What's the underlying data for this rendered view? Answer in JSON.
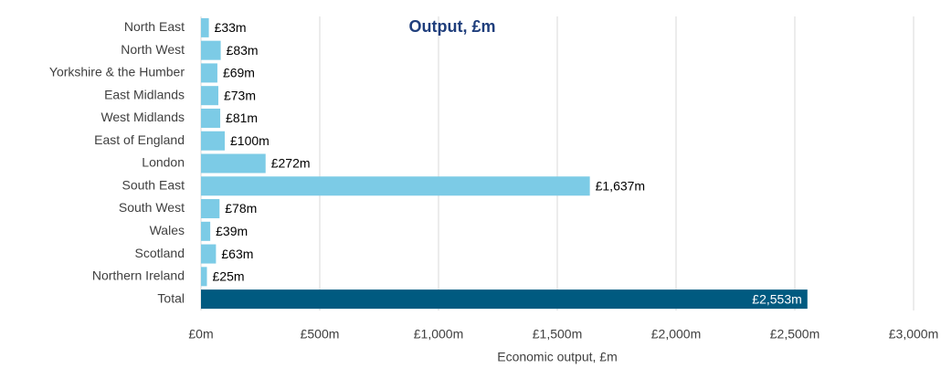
{
  "chart_data": {
    "type": "barh",
    "title": "Output, £m",
    "xlabel": "Economic output, £m",
    "categories": [
      "North East",
      "North West",
      "Yorkshire & the Humber",
      "East Midlands",
      "West Midlands",
      "East of England",
      "London",
      "South East",
      "South West",
      "Wales",
      "Scotland",
      "Northern Ireland",
      "Total"
    ],
    "values": [
      33,
      83,
      69,
      73,
      81,
      100,
      272,
      1637,
      78,
      39,
      63,
      25,
      2553
    ],
    "value_labels": [
      "£33m",
      "£83m",
      "£69m",
      "£73m",
      "£81m",
      "£100m",
      "£272m",
      "£1,637m",
      "£78m",
      "£39m",
      "£63m",
      "£25m",
      "£2,553m"
    ],
    "colors": [
      "#7ccbe6",
      "#7ccbe6",
      "#7ccbe6",
      "#7ccbe6",
      "#7ccbe6",
      "#7ccbe6",
      "#7ccbe6",
      "#7ccbe6",
      "#7ccbe6",
      "#7ccbe6",
      "#7ccbe6",
      "#7ccbe6",
      "#005a80"
    ],
    "xlim": [
      0,
      3000
    ],
    "xticks": [
      {
        "value": 0,
        "label": "£0m"
      },
      {
        "value": 500,
        "label": "£500m"
      },
      {
        "value": 1000,
        "label": "£1,000m"
      },
      {
        "value": 1500,
        "label": "£1,500m"
      },
      {
        "value": 2000,
        "label": "£2,000m"
      },
      {
        "value": 2500,
        "label": "£2,500m"
      },
      {
        "value": 3000,
        "label": "£3,000m"
      }
    ],
    "grid": true
  }
}
